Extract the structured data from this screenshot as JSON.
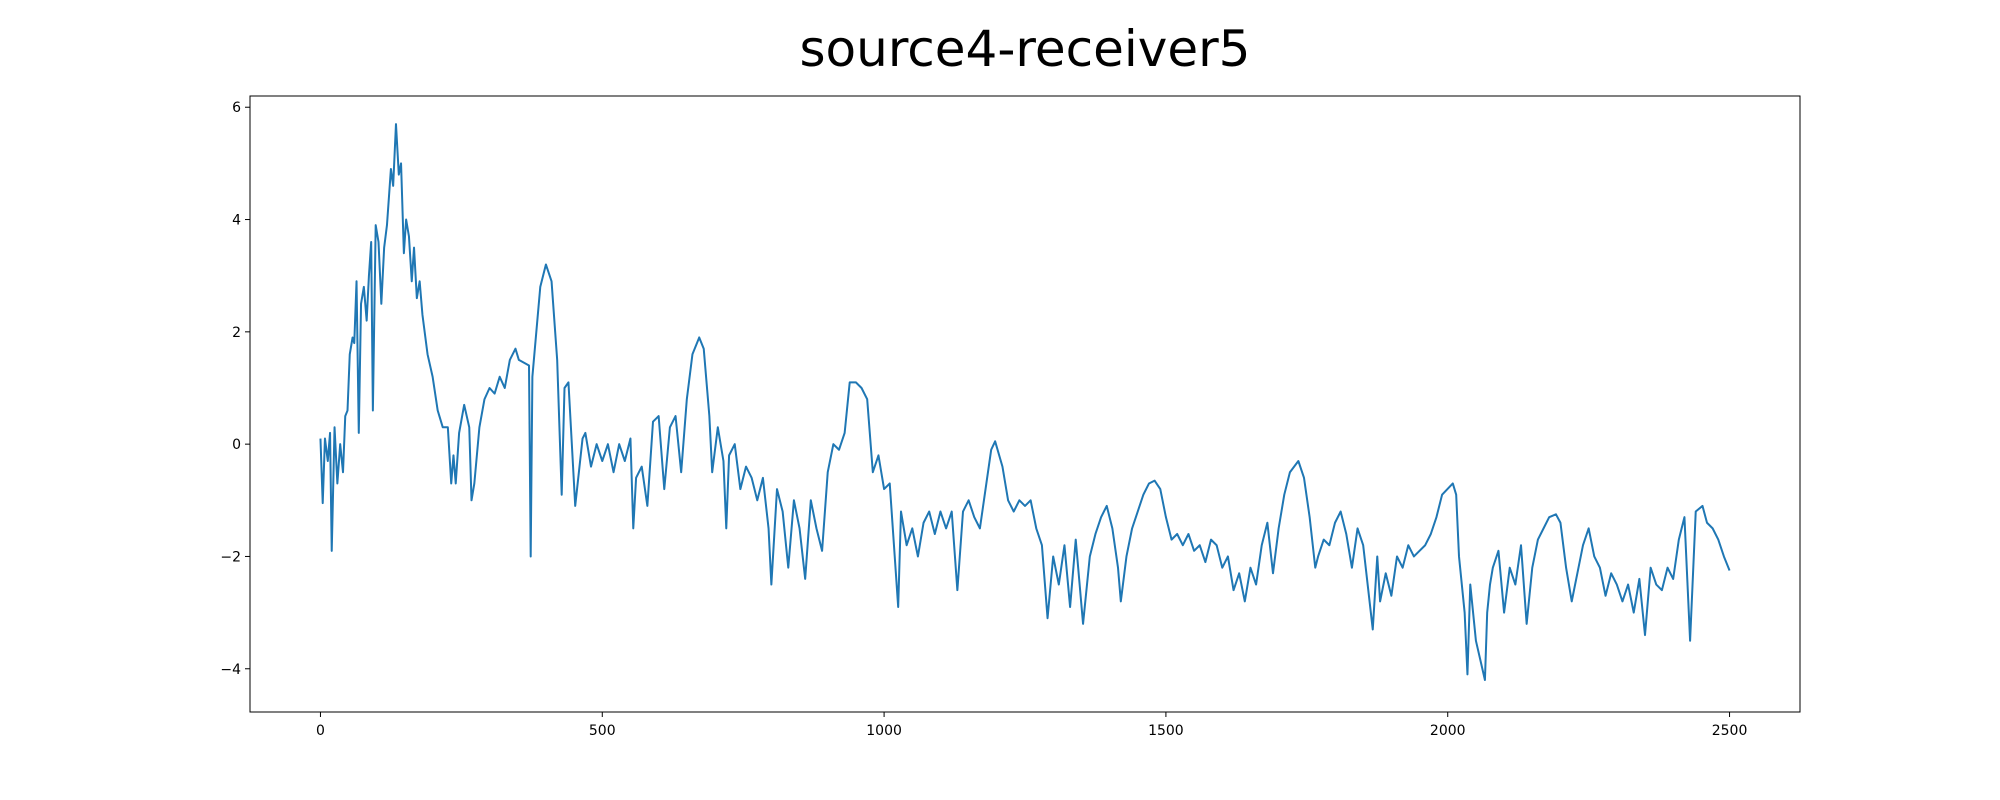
{
  "chart_data": {
    "type": "line",
    "title": "source4-receiver5",
    "xlim": [
      -125,
      2625
    ],
    "ylim": [
      -4.77,
      6.2
    ],
    "xticks": [
      0,
      500,
      1000,
      1500,
      2000,
      2500
    ],
    "yticks": [
      {
        "value": -4,
        "label": "−4"
      },
      {
        "value": -2,
        "label": "−2"
      },
      0,
      2,
      4,
      6
    ],
    "series": [
      {
        "color": "#1f77b4",
        "x": [
          0,
          4,
          8,
          13,
          17,
          20,
          25,
          30,
          35,
          40,
          44,
          48,
          52,
          57,
          60,
          64,
          68,
          72,
          77,
          82,
          86,
          90,
          93,
          98,
          103,
          108,
          113,
          118,
          125,
          129,
          134,
          139,
          143,
          148,
          152,
          157,
          162,
          166,
          171,
          176,
          181,
          190,
          199,
          208,
          217,
          226,
          232,
          236,
          240,
          246,
          255,
          264,
          268,
          273,
          282,
          291,
          300,
          309,
          318,
          327,
          336,
          346,
          352,
          370,
          373,
          376,
          390,
          400,
          410,
          420,
          428,
          433,
          440,
          452,
          465,
          470,
          480,
          490,
          500,
          510,
          520,
          530,
          540,
          550,
          555,
          560,
          570,
          580,
          590,
          600,
          610,
          620,
          630,
          640,
          650,
          660,
          672,
          680,
          690,
          695,
          705,
          715,
          720,
          725,
          735,
          745,
          755,
          765,
          775,
          785,
          795,
          800,
          810,
          820,
          830,
          840,
          850,
          860,
          870,
          880,
          890,
          900,
          910,
          920,
          930,
          939,
          950,
          960,
          970,
          980,
          990,
          1000,
          1010,
          1025,
          1030,
          1040,
          1050,
          1060,
          1070,
          1080,
          1090,
          1100,
          1110,
          1120,
          1130,
          1140,
          1150,
          1160,
          1170,
          1180,
          1190,
          1197,
          1210,
          1220,
          1230,
          1240,
          1250,
          1260,
          1270,
          1280,
          1290,
          1300,
          1310,
          1320,
          1330,
          1340,
          1353,
          1365,
          1375,
          1385,
          1395,
          1405,
          1415,
          1420,
          1430,
          1440,
          1450,
          1460,
          1470,
          1480,
          1490,
          1500,
          1510,
          1520,
          1530,
          1540,
          1550,
          1560,
          1570,
          1580,
          1590,
          1600,
          1610,
          1620,
          1630,
          1640,
          1650,
          1660,
          1670,
          1680,
          1690,
          1700,
          1710,
          1720,
          1735,
          1745,
          1755,
          1765,
          1770,
          1780,
          1790,
          1800,
          1810,
          1820,
          1830,
          1840,
          1850,
          1867,
          1875,
          1880,
          1890,
          1900,
          1910,
          1920,
          1930,
          1940,
          1950,
          1960,
          1970,
          1980,
          1990,
          2009,
          2015,
          2020,
          2030,
          2035,
          2040,
          2050,
          2066,
          2070,
          2075,
          2080,
          2090,
          2100,
          2110,
          2120,
          2130,
          2140,
          2150,
          2160,
          2170,
          2180,
          2192,
          2200,
          2210,
          2220,
          2230,
          2240,
          2250,
          2260,
          2270,
          2280,
          2290,
          2300,
          2310,
          2320,
          2330,
          2340,
          2350,
          2360,
          2370,
          2380,
          2390,
          2400,
          2410,
          2420,
          2430,
          2440,
          2452,
          2460,
          2470,
          2480,
          2490,
          2500
        ],
        "values": [
          0.1,
          -1.05,
          0.1,
          -0.3,
          0.2,
          -1.9,
          0.3,
          -0.7,
          0.0,
          -0.5,
          0.5,
          0.6,
          1.6,
          1.9,
          1.8,
          2.9,
          0.2,
          2.5,
          2.8,
          2.2,
          3.0,
          3.6,
          0.6,
          3.9,
          3.6,
          2.5,
          3.5,
          3.9,
          4.9,
          4.6,
          5.7,
          4.8,
          5.0,
          3.4,
          4.0,
          3.7,
          2.9,
          3.5,
          2.6,
          2.9,
          2.3,
          1.6,
          1.2,
          0.6,
          0.3,
          0.3,
          -0.7,
          -0.2,
          -0.7,
          0.2,
          0.7,
          0.3,
          -1.0,
          -0.7,
          0.3,
          0.8,
          1.0,
          0.9,
          1.2,
          1.0,
          1.5,
          1.7,
          1.5,
          1.4,
          -2.0,
          1.2,
          2.8,
          3.2,
          2.9,
          1.5,
          -0.9,
          1.0,
          1.1,
          -1.1,
          0.1,
          0.2,
          -0.4,
          0.0,
          -0.3,
          0.0,
          -0.5,
          0.0,
          -0.3,
          0.1,
          -1.5,
          -0.6,
          -0.4,
          -1.1,
          0.4,
          0.5,
          -0.8,
          0.3,
          0.5,
          -0.5,
          0.8,
          1.6,
          1.9,
          1.7,
          0.5,
          -0.5,
          0.3,
          -0.3,
          -1.5,
          -0.2,
          0.0,
          -0.8,
          -0.4,
          -0.6,
          -1.0,
          -0.6,
          -1.5,
          -2.5,
          -0.8,
          -1.2,
          -2.2,
          -1.0,
          -1.5,
          -2.4,
          -1.0,
          -1.5,
          -1.9,
          -0.5,
          0.0,
          -0.1,
          0.2,
          1.1,
          1.1,
          1.0,
          0.8,
          -0.5,
          -0.2,
          -0.8,
          -0.7,
          -2.9,
          -1.2,
          -1.8,
          -1.5,
          -2.0,
          -1.4,
          -1.2,
          -1.6,
          -1.2,
          -1.5,
          -1.2,
          -2.6,
          -1.2,
          -1.0,
          -1.3,
          -1.5,
          -0.8,
          -0.1,
          0.05,
          -0.4,
          -1.0,
          -1.2,
          -1.0,
          -1.1,
          -1.0,
          -1.5,
          -1.8,
          -3.1,
          -2.0,
          -2.5,
          -1.8,
          -2.9,
          -1.7,
          -3.2,
          -2.0,
          -1.6,
          -1.3,
          -1.1,
          -1.5,
          -2.2,
          -2.8,
          -2.0,
          -1.5,
          -1.2,
          -0.9,
          -0.7,
          -0.65,
          -0.8,
          -1.3,
          -1.7,
          -1.6,
          -1.8,
          -1.6,
          -1.9,
          -1.8,
          -2.1,
          -1.7,
          -1.8,
          -2.2,
          -2.0,
          -2.6,
          -2.3,
          -2.8,
          -2.2,
          -2.5,
          -1.8,
          -1.4,
          -2.3,
          -1.5,
          -0.9,
          -0.5,
          -0.3,
          -0.6,
          -1.3,
          -2.2,
          -2.0,
          -1.7,
          -1.8,
          -1.4,
          -1.2,
          -1.6,
          -2.2,
          -1.5,
          -1.8,
          -3.3,
          -2.0,
          -2.8,
          -2.3,
          -2.7,
          -2.0,
          -2.2,
          -1.8,
          -2.0,
          -1.9,
          -1.8,
          -1.6,
          -1.3,
          -0.9,
          -0.7,
          -0.9,
          -2.0,
          -3.0,
          -4.1,
          -2.5,
          -3.5,
          -4.2,
          -3.0,
          -2.5,
          -2.2,
          -1.9,
          -3.0,
          -2.2,
          -2.5,
          -1.8,
          -3.2,
          -2.2,
          -1.7,
          -1.5,
          -1.3,
          -1.25,
          -1.4,
          -2.2,
          -2.8,
          -2.3,
          -1.8,
          -1.5,
          -2.0,
          -2.2,
          -2.7,
          -2.3,
          -2.5,
          -2.8,
          -2.5,
          -3.0,
          -2.4,
          -3.4,
          -2.2,
          -2.5,
          -2.6,
          -2.2,
          -2.4,
          -1.7,
          -1.3,
          -3.5,
          -1.2,
          -1.1,
          -1.4,
          -1.5,
          -1.7,
          -2.0,
          -2.25
        ]
      }
    ]
  }
}
